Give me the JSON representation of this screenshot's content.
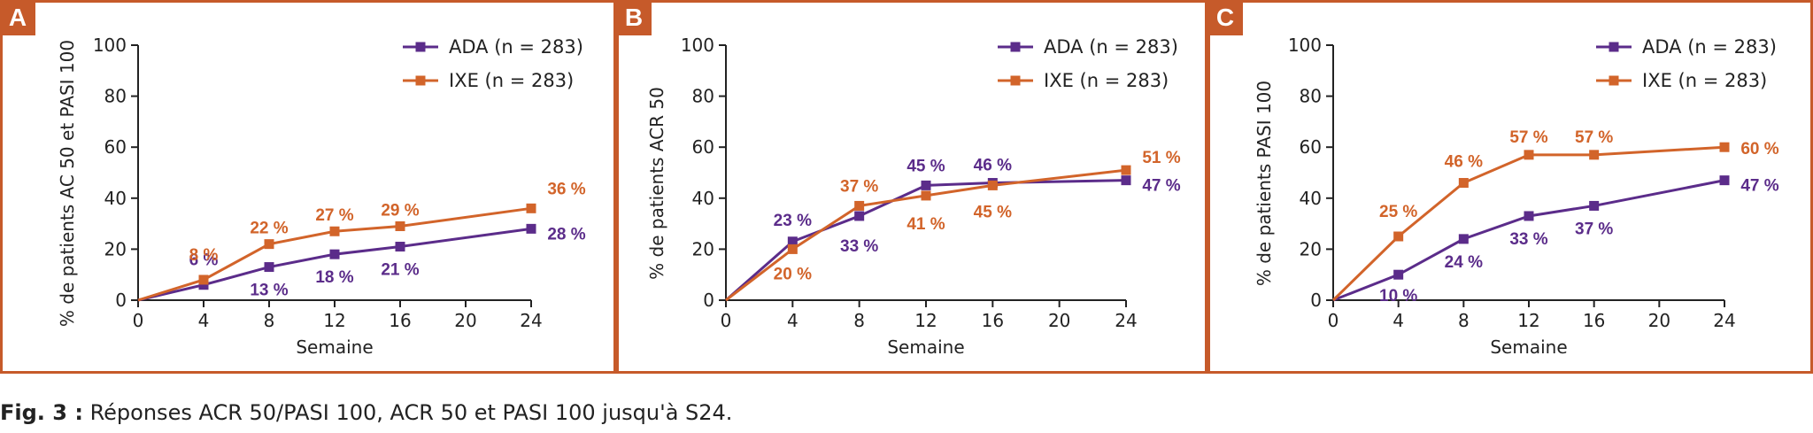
{
  "colors": {
    "frame": "#C65A2A",
    "ada": "#5B2C8A",
    "ixe": "#D2642A"
  },
  "caption": {
    "label": "Fig. 3 :",
    "text": " Réponses ACR 50/PASI 100, ACR 50 et PASI 100 jusqu'à S24."
  },
  "chart_data": [
    {
      "panel": "A",
      "type": "line",
      "xlabel": "Semaine",
      "ylabel": "% de patients AC 50 et PASI 100",
      "x_ticks": [
        0,
        4,
        8,
        12,
        16,
        20,
        24
      ],
      "y_ticks": [
        0,
        20,
        40,
        60,
        80,
        100
      ],
      "xlim": [
        0,
        24
      ],
      "ylim": [
        0,
        100
      ],
      "legend_position": "top-right",
      "series": [
        {
          "name": "ADA (n = 283)",
          "color": "#5B2C8A",
          "x": [
            0,
            4,
            8,
            12,
            16,
            24
          ],
          "y": [
            0,
            6,
            13,
            18,
            21,
            28
          ],
          "labels": [
            "",
            "6 %",
            "13 %",
            "18 %",
            "21 %",
            "28 %"
          ]
        },
        {
          "name": "IXE (n = 283)",
          "color": "#D2642A",
          "x": [
            0,
            4,
            8,
            12,
            16,
            24
          ],
          "y": [
            0,
            8,
            22,
            27,
            29,
            36
          ],
          "labels": [
            "",
            "8 %",
            "22 %",
            "27 %",
            "29 %",
            "36 %"
          ]
        }
      ]
    },
    {
      "panel": "B",
      "type": "line",
      "xlabel": "Semaine",
      "ylabel": "% de patients ACR 50",
      "x_ticks": [
        0,
        4,
        8,
        12,
        16,
        20,
        24
      ],
      "y_ticks": [
        0,
        20,
        40,
        60,
        80,
        100
      ],
      "xlim": [
        0,
        24
      ],
      "ylim": [
        0,
        100
      ],
      "legend_position": "top-right",
      "series": [
        {
          "name": "ADA (n = 283)",
          "color": "#5B2C8A",
          "x": [
            0,
            4,
            8,
            12,
            16,
            24
          ],
          "y": [
            0,
            23,
            33,
            45,
            46,
            47
          ],
          "labels": [
            "",
            "23 %",
            "33 %",
            "45 %",
            "46 %",
            "47 %"
          ]
        },
        {
          "name": "IXE (n = 283)",
          "color": "#D2642A",
          "x": [
            0,
            4,
            8,
            12,
            16,
            24
          ],
          "y": [
            0,
            20,
            37,
            41,
            45,
            51
          ],
          "labels": [
            "",
            "20 %",
            "37 %",
            "41 %",
            "45 %",
            "51 %"
          ]
        }
      ]
    },
    {
      "panel": "C",
      "type": "line",
      "xlabel": "Semaine",
      "ylabel": "% de patients PASI 100",
      "x_ticks": [
        0,
        4,
        8,
        12,
        16,
        20,
        24
      ],
      "y_ticks": [
        0,
        20,
        40,
        60,
        80,
        100
      ],
      "xlim": [
        0,
        24
      ],
      "ylim": [
        0,
        100
      ],
      "legend_position": "top-right",
      "series": [
        {
          "name": "ADA (n = 283)",
          "color": "#5B2C8A",
          "x": [
            0,
            4,
            8,
            12,
            16,
            24
          ],
          "y": [
            0,
            10,
            24,
            33,
            37,
            47
          ],
          "labels": [
            "",
            "10 %",
            "24 %",
            "33 %",
            "37 %",
            "47 %"
          ]
        },
        {
          "name": "IXE (n = 283)",
          "color": "#D2642A",
          "x": [
            0,
            4,
            8,
            12,
            16,
            24
          ],
          "y": [
            0,
            25,
            46,
            57,
            57,
            60
          ],
          "labels": [
            "",
            "25 %",
            "46 %",
            "57 %",
            "57 %",
            "60 %"
          ]
        }
      ]
    }
  ]
}
